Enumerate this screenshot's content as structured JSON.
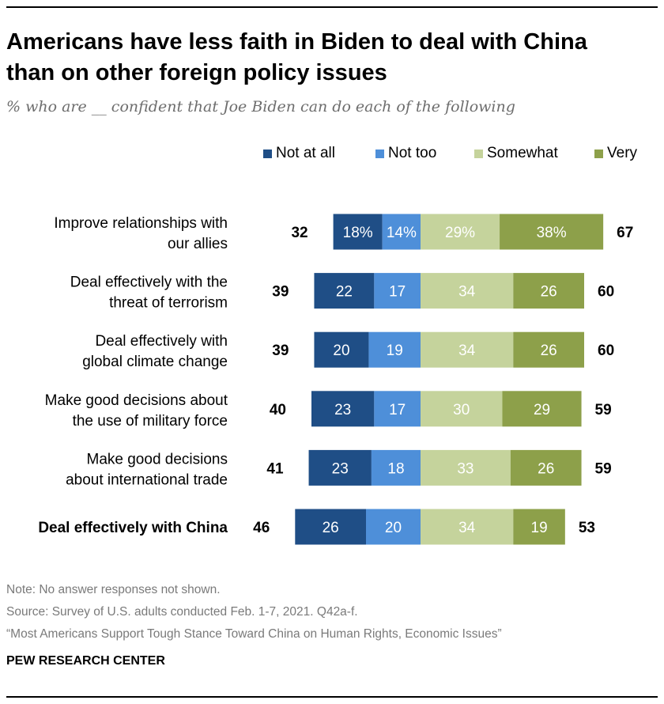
{
  "header": {
    "title_line1": "Americans have less faith in Biden to deal with China",
    "title_line2": "than on other foreign policy issues",
    "subtitle": "% who are __ confident that Joe Biden can do each of the following"
  },
  "colors": {
    "not_at_all": "#1f4e86",
    "not_too": "#4e8fd9",
    "somewhat": "#c5d39c",
    "very": "#8da04a"
  },
  "chart_data": {
    "type": "bar",
    "subtype": "diverging-stacked-horizontal",
    "title": "Americans have less faith in Biden to deal with China than on other foreign policy issues",
    "subtitle": "% who are __ confident that Joe Biden can do each of the following",
    "legend": [
      "Not at all",
      "Not too",
      "Somewhat",
      "Very"
    ],
    "legend_position": "top",
    "categories": [
      [
        "Improve relationships with",
        "our allies"
      ],
      [
        "Deal effectively with the",
        "threat of terrorism"
      ],
      [
        "Deal effectively with",
        "global climate change"
      ],
      [
        "Make good decisions about",
        "the use of military force"
      ],
      [
        "Make good decisions",
        "about international trade"
      ],
      [
        "Deal effectively with China"
      ]
    ],
    "highlighted_category": 5,
    "series": [
      {
        "name": "Not at all",
        "key": "not_at_all",
        "values": [
          18,
          22,
          20,
          23,
          23,
          26
        ]
      },
      {
        "name": "Not too",
        "key": "not_too",
        "values": [
          14,
          17,
          19,
          17,
          18,
          20
        ]
      },
      {
        "name": "Somewhat",
        "key": "somewhat",
        "values": [
          29,
          34,
          34,
          30,
          33,
          34
        ]
      },
      {
        "name": "Very",
        "key": "very",
        "values": [
          38,
          26,
          26,
          29,
          26,
          19
        ]
      }
    ],
    "value_labels": [
      [
        "18%",
        "14%",
        "29%",
        "38%"
      ],
      [
        "22",
        "17",
        "34",
        "26"
      ],
      [
        "20",
        "19",
        "34",
        "26"
      ],
      [
        "23",
        "17",
        "30",
        "29"
      ],
      [
        "23",
        "18",
        "33",
        "26"
      ],
      [
        "26",
        "20",
        "34",
        "19"
      ]
    ],
    "net_not_confident": [
      "32",
      "39",
      "39",
      "40",
      "41",
      "46"
    ],
    "net_confident": [
      "67",
      "60",
      "60",
      "59",
      "59",
      "53"
    ]
  },
  "footer": {
    "note": "Note: No answer responses not shown.",
    "source": "Source: Survey of U.S. adults conducted Feb. 1-7, 2021. Q42a-f.",
    "report": "“Most Americans Support Tough Stance Toward China on Human Rights, Economic Issues”",
    "brand": "PEW RESEARCH CENTER"
  }
}
